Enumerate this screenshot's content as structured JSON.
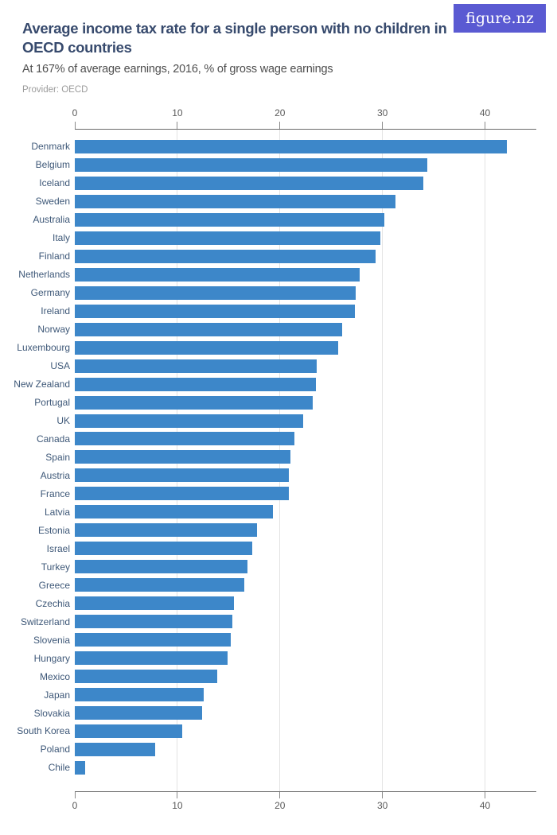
{
  "header": {
    "title": "Average income tax rate for a single person with no children in OECD countries",
    "subtitle": "At 167% of average earnings, 2016, % of gross wage earnings",
    "provider": "Provider: OECD",
    "logo_text": "figure.nz",
    "logo_bg_color": "#5a5ad2"
  },
  "chart_data": {
    "type": "bar",
    "orientation": "horizontal",
    "title": "Average income tax rate for a single person with no children in OECD countries",
    "subtitle": "At 167% of average earnings, 2016, % of gross wage earnings",
    "xlabel": "% of gross wage earnings",
    "ylabel": "",
    "xlim": [
      0,
      45
    ],
    "xticks": [
      0,
      10,
      20,
      30,
      40
    ],
    "grid": true,
    "legend": "none",
    "bar_color": "#3d87c9",
    "categories": [
      "Denmark",
      "Belgium",
      "Iceland",
      "Sweden",
      "Australia",
      "Italy",
      "Finland",
      "Netherlands",
      "Germany",
      "Ireland",
      "Norway",
      "Luxembourg",
      "USA",
      "New Zealand",
      "Portugal",
      "UK",
      "Canada",
      "Spain",
      "Austria",
      "France",
      "Latvia",
      "Estonia",
      "Israel",
      "Turkey",
      "Greece",
      "Czechia",
      "Switzerland",
      "Slovenia",
      "Hungary",
      "Mexico",
      "Japan",
      "Slovakia",
      "South Korea",
      "Poland",
      "Chile"
    ],
    "values": [
      42.1,
      34.4,
      34.0,
      31.3,
      30.2,
      29.8,
      29.3,
      27.8,
      27.4,
      27.3,
      26.1,
      25.7,
      23.6,
      23.5,
      23.2,
      22.3,
      21.4,
      21.0,
      20.9,
      20.85,
      19.3,
      17.8,
      17.3,
      16.8,
      16.5,
      15.5,
      15.4,
      15.2,
      14.9,
      13.9,
      12.6,
      12.4,
      10.5,
      7.8,
      1.0
    ]
  }
}
